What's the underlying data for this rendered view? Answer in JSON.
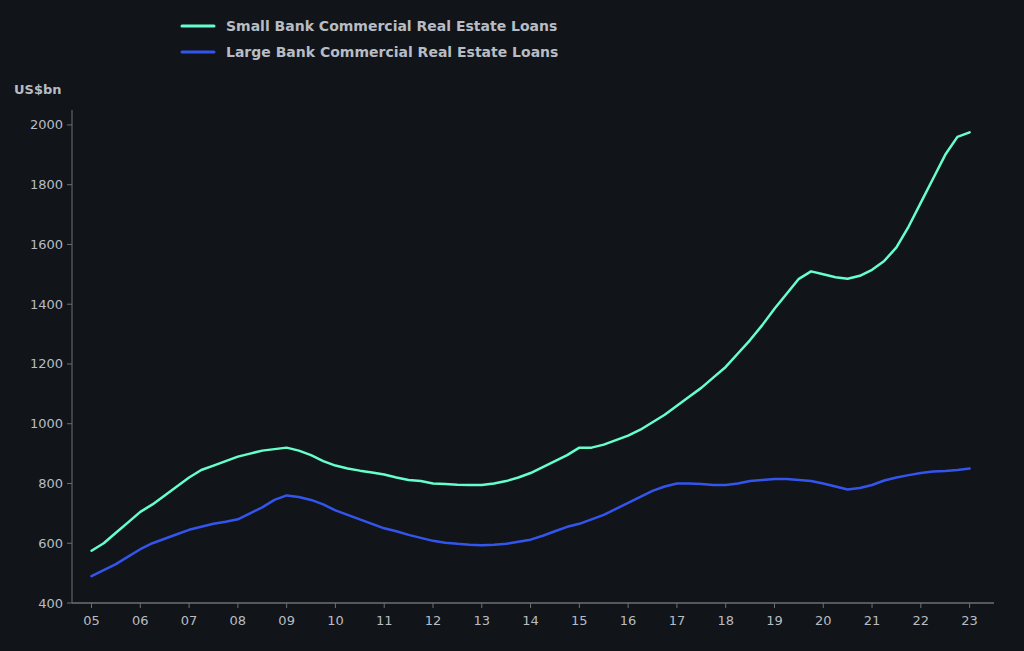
{
  "chart_data": {
    "type": "line",
    "ylabel": "US$bn",
    "grid": false,
    "xlim": [
      2004.6,
      2023.5
    ],
    "xticks": [
      {
        "value": 2005,
        "label": "05"
      },
      {
        "value": 2006,
        "label": "06"
      },
      {
        "value": 2007,
        "label": "07"
      },
      {
        "value": 2008,
        "label": "08"
      },
      {
        "value": 2009,
        "label": "09"
      },
      {
        "value": 2010,
        "label": "10"
      },
      {
        "value": 2011,
        "label": "11"
      },
      {
        "value": 2012,
        "label": "12"
      },
      {
        "value": 2013,
        "label": "13"
      },
      {
        "value": 2014,
        "label": "14"
      },
      {
        "value": 2015,
        "label": "15"
      },
      {
        "value": 2016,
        "label": "16"
      },
      {
        "value": 2017,
        "label": "17"
      },
      {
        "value": 2018,
        "label": "18"
      },
      {
        "value": 2019,
        "label": "19"
      },
      {
        "value": 2020,
        "label": "20"
      },
      {
        "value": 2021,
        "label": "21"
      },
      {
        "value": 2022,
        "label": "22"
      },
      {
        "value": 2023,
        "label": "23"
      }
    ],
    "ylim": [
      400,
      2050
    ],
    "yticks": [
      400,
      600,
      800,
      1000,
      1200,
      1400,
      1600,
      1800,
      2000
    ],
    "x": [
      2005.0,
      2005.25,
      2005.5,
      2005.75,
      2006.0,
      2006.25,
      2006.5,
      2006.75,
      2007.0,
      2007.25,
      2007.5,
      2007.75,
      2008.0,
      2008.25,
      2008.5,
      2008.75,
      2009.0,
      2009.25,
      2009.5,
      2009.75,
      2010.0,
      2010.25,
      2010.5,
      2010.75,
      2011.0,
      2011.25,
      2011.5,
      2011.75,
      2012.0,
      2012.25,
      2012.5,
      2012.75,
      2013.0,
      2013.25,
      2013.5,
      2013.75,
      2014.0,
      2014.25,
      2014.5,
      2014.75,
      2015.0,
      2015.25,
      2015.5,
      2015.75,
      2016.0,
      2016.25,
      2016.5,
      2016.75,
      2017.0,
      2017.25,
      2017.5,
      2017.75,
      2018.0,
      2018.25,
      2018.5,
      2018.75,
      2019.0,
      2019.25,
      2019.5,
      2019.75,
      2020.0,
      2020.25,
      2020.5,
      2020.75,
      2021.0,
      2021.25,
      2021.5,
      2021.75,
      2022.0,
      2022.25,
      2022.5,
      2022.75,
      2023.0
    ],
    "series": [
      {
        "name": "Small Bank Commercial Real Estate Loans",
        "color": "#66ffcc",
        "values": [
          575,
          600,
          635,
          670,
          705,
          730,
          760,
          790,
          820,
          845,
          860,
          875,
          890,
          900,
          910,
          915,
          920,
          910,
          895,
          875,
          860,
          850,
          843,
          837,
          830,
          820,
          812,
          808,
          800,
          798,
          796,
          795,
          795,
          800,
          808,
          820,
          835,
          855,
          875,
          895,
          920,
          920,
          930,
          945,
          960,
          980,
          1005,
          1030,
          1060,
          1090,
          1120,
          1155,
          1190,
          1235,
          1280,
          1330,
          1385,
          1435,
          1485,
          1510,
          1500,
          1490,
          1485,
          1495,
          1515,
          1545,
          1590,
          1660,
          1740,
          1820,
          1900,
          1960,
          1975
        ]
      },
      {
        "name": "Large Bank Commercial Real Estate Loans",
        "color": "#3355ee",
        "values": [
          490,
          510,
          530,
          555,
          580,
          600,
          615,
          630,
          645,
          655,
          665,
          672,
          680,
          700,
          720,
          745,
          760,
          755,
          745,
          730,
          710,
          695,
          680,
          665,
          650,
          640,
          628,
          618,
          608,
          602,
          598,
          595,
          593,
          595,
          598,
          605,
          612,
          625,
          640,
          655,
          665,
          680,
          695,
          715,
          735,
          755,
          775,
          790,
          800,
          800,
          798,
          795,
          795,
          800,
          808,
          812,
          815,
          815,
          812,
          808,
          800,
          790,
          780,
          785,
          795,
          810,
          820,
          828,
          835,
          840,
          842,
          845,
          850
        ]
      }
    ]
  }
}
